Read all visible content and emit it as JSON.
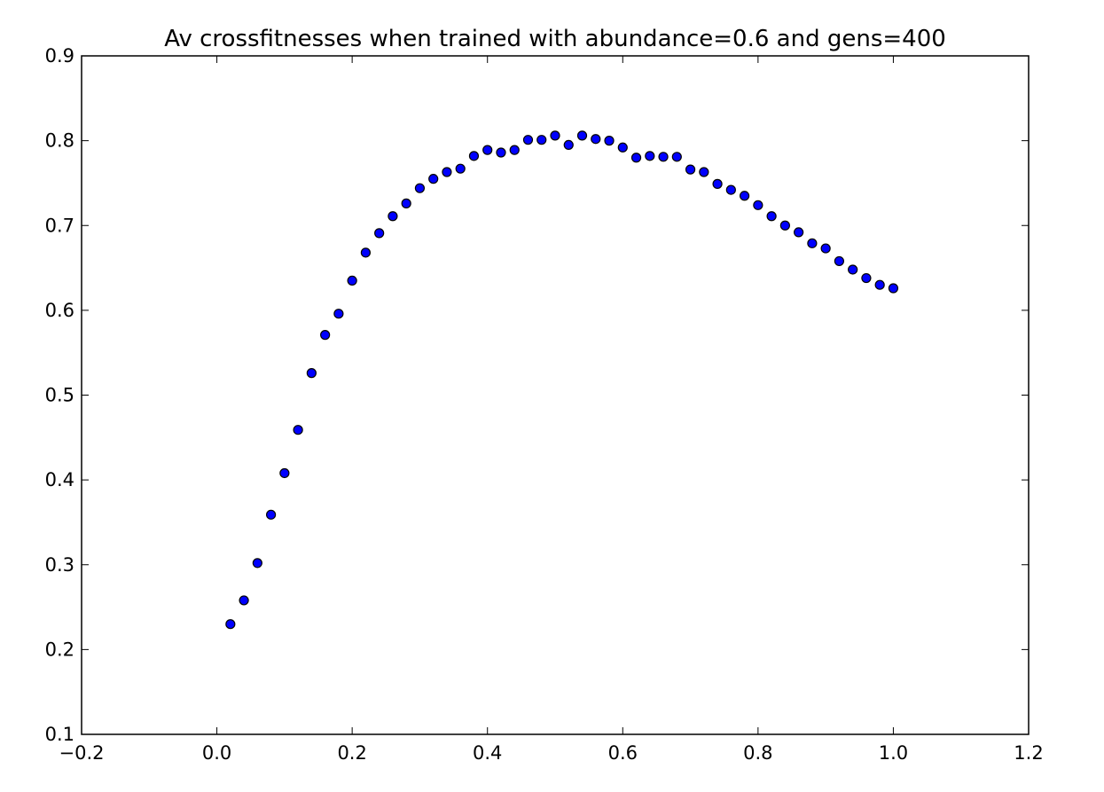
{
  "chart_data": {
    "type": "scatter",
    "title": "Av crossfitnesses when trained with abundance=0.6 and gens=400",
    "series": [
      {
        "color": "#0000ff",
        "x": [
          0.02,
          0.04,
          0.06,
          0.08,
          0.1,
          0.12,
          0.14,
          0.16,
          0.18,
          0.2,
          0.22,
          0.24,
          0.26,
          0.28,
          0.3,
          0.32,
          0.34,
          0.36,
          0.38,
          0.4,
          0.42,
          0.44,
          0.46,
          0.48,
          0.5,
          0.52,
          0.54,
          0.56,
          0.58,
          0.6,
          0.62,
          0.64,
          0.66,
          0.68,
          0.7,
          0.72,
          0.74,
          0.76,
          0.78,
          0.8,
          0.82,
          0.84,
          0.86,
          0.88,
          0.9,
          0.92,
          0.94,
          0.96,
          0.98,
          1.0
        ],
        "values": [
          0.23,
          0.258,
          0.302,
          0.359,
          0.408,
          0.459,
          0.526,
          0.571,
          0.596,
          0.635,
          0.668,
          0.691,
          0.711,
          0.726,
          0.744,
          0.755,
          0.763,
          0.767,
          0.782,
          0.789,
          0.786,
          0.789,
          0.801,
          0.801,
          0.806,
          0.795,
          0.806,
          0.802,
          0.8,
          0.792,
          0.78,
          0.782,
          0.781,
          0.781,
          0.766,
          0.763,
          0.749,
          0.742,
          0.735,
          0.724,
          0.711,
          0.7,
          0.692,
          0.679,
          0.673,
          0.658,
          0.648,
          0.638,
          0.63,
          0.626
        ]
      }
    ],
    "xlim": [
      -0.2,
      1.2
    ],
    "xticks": [
      {
        "value": -0.2,
        "label": "−0.2"
      },
      {
        "value": 0,
        "label": "0.0"
      },
      0.2,
      0.4,
      0.6,
      0.8,
      {
        "value": 1,
        "label": "1.0"
      },
      1.2
    ],
    "ylim": [
      0.1,
      0.9
    ],
    "yticks": [
      0.1,
      0.2,
      0.3,
      0.4,
      0.5,
      0.6,
      0.7,
      0.8,
      0.9
    ],
    "grid": false
  }
}
